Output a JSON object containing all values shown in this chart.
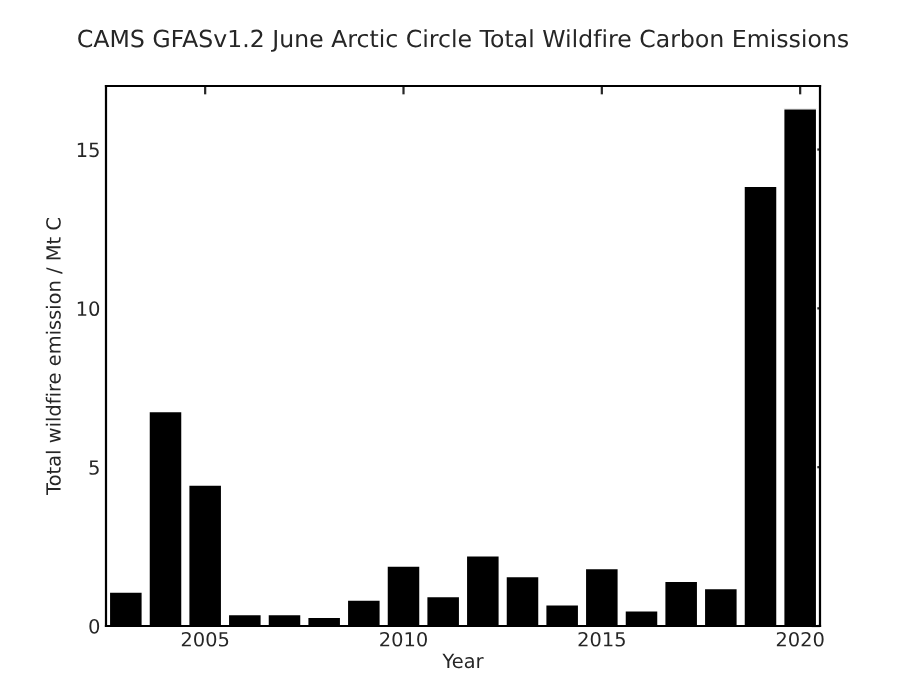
{
  "chart_data": {
    "type": "bar",
    "title": "CAMS GFASv1.2 June Arctic Circle Total Wildfire Carbon Emissions",
    "xlabel": "Year",
    "ylabel": "Total wildfire emission / Mt C",
    "x": [
      2003,
      2004,
      2005,
      2006,
      2007,
      2008,
      2009,
      2010,
      2011,
      2012,
      2013,
      2014,
      2015,
      2016,
      2017,
      2018,
      2019,
      2020
    ],
    "values": [
      1.07,
      6.75,
      4.44,
      0.36,
      0.36,
      0.27,
      0.82,
      1.89,
      0.93,
      2.21,
      1.56,
      0.67,
      1.81,
      0.48,
      1.41,
      1.18,
      13.84,
      16.28
    ],
    "color": "#000000",
    "xlim": [
      2002.5,
      2020.5
    ],
    "xticks": [
      2005,
      2010,
      2015,
      2020
    ],
    "ylim": [
      0,
      17
    ],
    "yticks": [
      0,
      5,
      10,
      15
    ],
    "grid": false,
    "legend": false
  }
}
